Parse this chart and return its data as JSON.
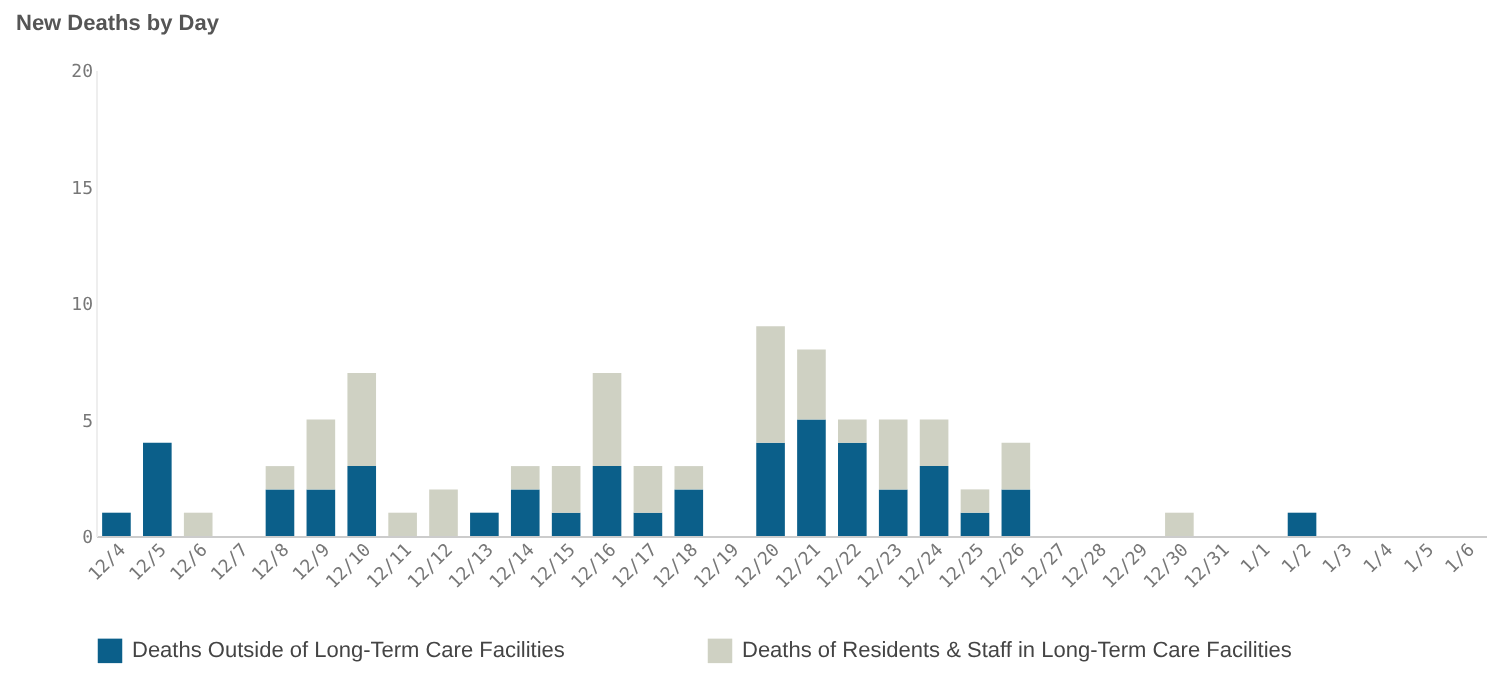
{
  "chart_data": {
    "type": "bar",
    "title": "New Deaths by Day",
    "stacked": true,
    "legend": "bottom",
    "categories": [
      "12/4",
      "12/5",
      "12/6",
      "12/7",
      "12/8",
      "12/9",
      "12/10",
      "12/11",
      "12/12",
      "12/13",
      "12/14",
      "12/15",
      "12/16",
      "12/17",
      "12/18",
      "12/19",
      "12/20",
      "12/21",
      "12/22",
      "12/23",
      "12/24",
      "12/25",
      "12/26",
      "12/27",
      "12/28",
      "12/29",
      "12/30",
      "12/31",
      "1/1",
      "1/2",
      "1/3",
      "1/4",
      "1/5",
      "1/6"
    ],
    "series": [
      {
        "name": "Deaths Outside of Long-Term Care Facilities",
        "color": "#0b5f8a",
        "values": [
          1,
          4,
          0,
          0,
          2,
          2,
          3,
          0,
          0,
          1,
          2,
          1,
          3,
          1,
          2,
          0,
          4,
          5,
          4,
          2,
          3,
          1,
          2,
          0,
          0,
          0,
          0,
          0,
          0,
          1,
          0,
          0,
          0,
          0
        ]
      },
      {
        "name": "Deaths of Residents & Staff in Long-Term Care Facilities",
        "color": "#cfd1c3",
        "values": [
          0,
          0,
          1,
          0,
          1,
          3,
          4,
          1,
          2,
          0,
          1,
          2,
          4,
          2,
          1,
          0,
          5,
          3,
          1,
          3,
          2,
          1,
          2,
          0,
          0,
          0,
          1,
          0,
          0,
          0,
          0,
          0,
          0,
          0
        ]
      }
    ],
    "ylim": [
      0,
      20
    ],
    "yticks": [
      0,
      5,
      10,
      15,
      20
    ],
    "grid": false
  }
}
